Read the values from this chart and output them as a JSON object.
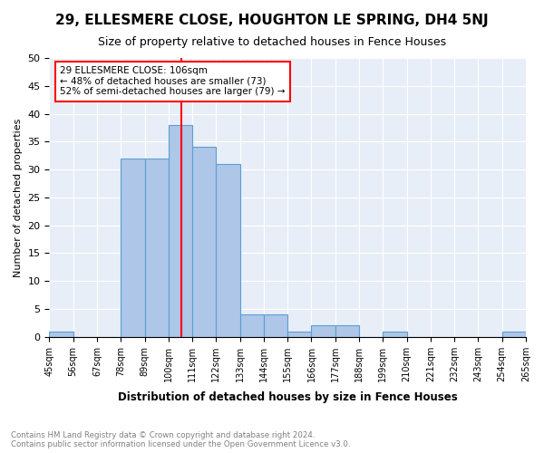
{
  "title": "29, ELLESMERE CLOSE, HOUGHTON LE SPRING, DH4 5NJ",
  "subtitle": "Size of property relative to detached houses in Fence Houses",
  "xlabel": "Distribution of detached houses by size in Fence Houses",
  "ylabel": "Number of detached properties",
  "bin_edges": [
    45,
    56,
    67,
    78,
    89,
    100,
    111,
    122,
    133,
    144,
    155,
    166,
    177,
    188,
    199,
    210,
    221,
    232,
    243,
    254,
    265
  ],
  "bin_counts": [
    1,
    0,
    0,
    32,
    32,
    38,
    34,
    31,
    4,
    4,
    1,
    2,
    2,
    0,
    1,
    0,
    0,
    0,
    0,
    1
  ],
  "bar_color": "#aec6e8",
  "bar_edge_color": "#5a9fd4",
  "property_size": 106,
  "vline_color": "red",
  "annotation_text": "29 ELLESMERE CLOSE: 106sqm\n← 48% of detached houses are smaller (73)\n52% of semi-detached houses are larger (79) →",
  "annotation_box_color": "white",
  "annotation_box_edge_color": "red",
  "footnote": "Contains HM Land Registry data © Crown copyright and database right 2024.\nContains public sector information licensed under the Open Government Licence v3.0.",
  "ylim": [
    0,
    50
  ],
  "background_color": "#e8eef7",
  "tick_labels": [
    "45sqm",
    "56sqm",
    "67sqm",
    "78sqm",
    "89sqm",
    "100sqm",
    "111sqm",
    "122sqm",
    "133sqm",
    "144sqm",
    "155sqm",
    "166sqm",
    "177sqm",
    "188sqm",
    "199sqm",
    "210sqm",
    "221sqm",
    "232sqm",
    "243sqm",
    "254sqm",
    "265sqm"
  ]
}
